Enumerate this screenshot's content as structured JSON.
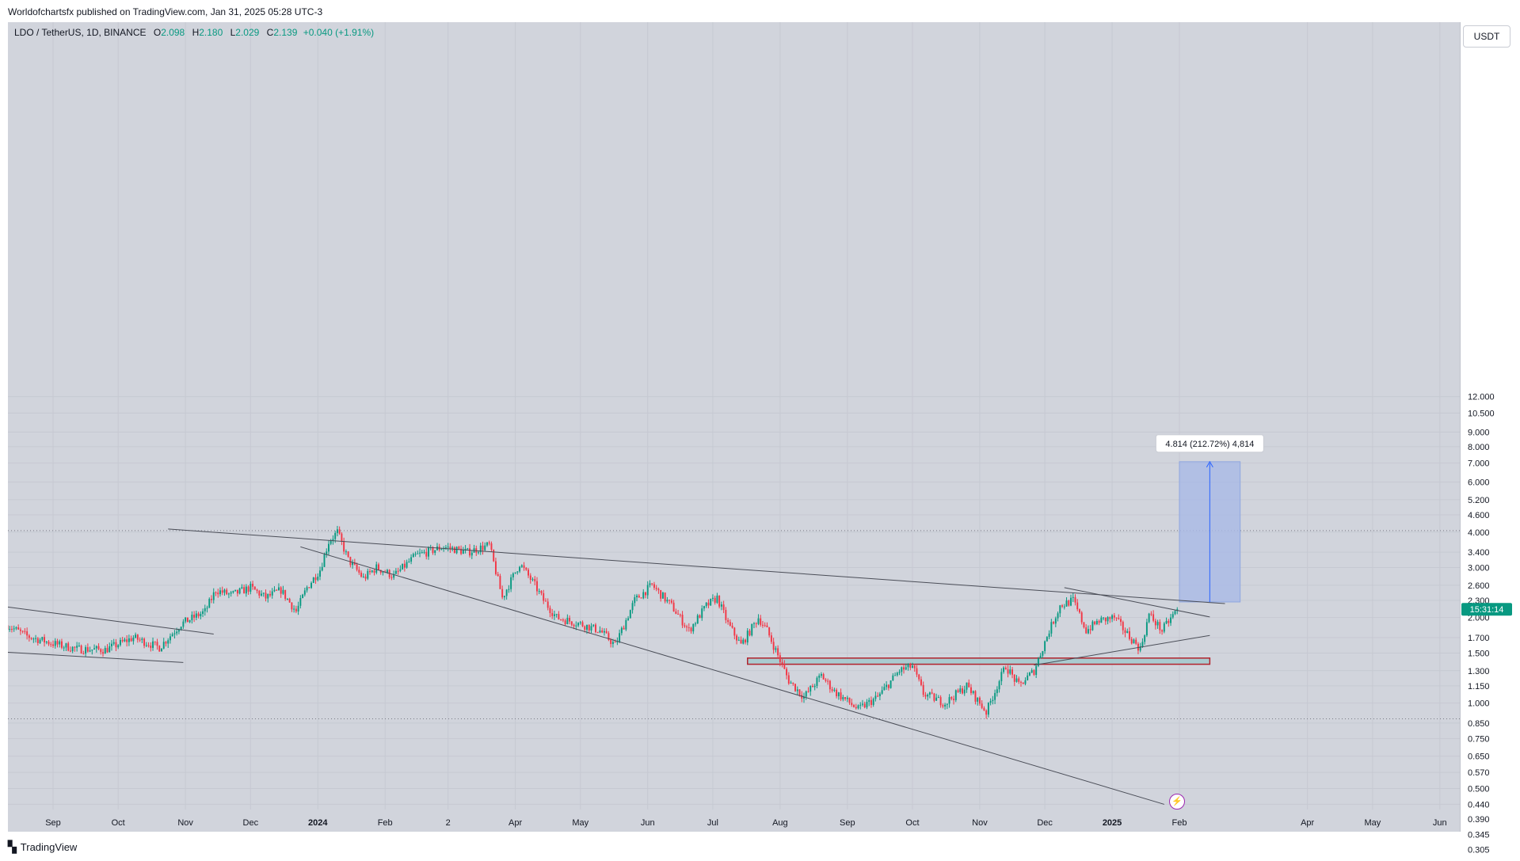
{
  "header": {
    "published_text": "Worldofchartsfx published on TradingView.com, Jan 31, 2025 05:28 UTC-3"
  },
  "legend": {
    "symbol": "LDO / TetherUS, 1D, BINANCE",
    "open_label": "O",
    "open": "2.098",
    "high_label": "H",
    "high": "2.180",
    "low_label": "L",
    "low": "2.029",
    "close_label": "C",
    "close": "2.139",
    "change": "+0.040 (+1.91%)"
  },
  "price_axis": {
    "unit_button": "USDT",
    "countdown": "15:31:14"
  },
  "measure_label": "4.814 (212.72%) 4,814",
  "footer": {
    "brand": "TradingView"
  },
  "icons": {
    "lightning": "lightning-icon",
    "logo": "tradingview-logo-icon"
  },
  "colors": {
    "up": "#089981",
    "down": "#f23645",
    "background": "#d1d4dc",
    "zone_fill": "#9cc8cc",
    "zone_border": "#b2222c",
    "measure_fill": "#a9b9e6",
    "measure_line": "#2962ff"
  },
  "chart_data": {
    "type": "candlestick",
    "title": "LDO / TetherUS, 1D, BINANCE",
    "scale": "log",
    "ylim": [
      0.29,
      13.5
    ],
    "y_ticks": [
      "12.000",
      "10.500",
      "9.000",
      "8.000",
      "7.000",
      "6.000",
      "5.200",
      "4.600",
      "4.000",
      "3.400",
      "3.000",
      "2.600",
      "2.300",
      "2.000",
      "1.700",
      "1.500",
      "1.300",
      "1.150",
      "1.000",
      "0.850",
      "0.750",
      "0.650",
      "0.570",
      "0.500",
      "0.440",
      "0.390",
      "0.345",
      "0.305"
    ],
    "y_tick_values": [
      12,
      10.5,
      9,
      8,
      7,
      6,
      5.2,
      4.6,
      4,
      3.4,
      3,
      2.6,
      2.3,
      2,
      1.7,
      1.5,
      1.3,
      1.15,
      1,
      0.85,
      0.75,
      0.65,
      0.57,
      0.5,
      0.44,
      0.39,
      0.345,
      0.305
    ],
    "x_ticks": [
      {
        "label": "Sep",
        "date": "2023-09-01"
      },
      {
        "label": "Oct",
        "date": "2023-10-01"
      },
      {
        "label": "Nov",
        "date": "2023-11-01"
      },
      {
        "label": "Dec",
        "date": "2023-12-01"
      },
      {
        "label": "2024",
        "date": "2024-01-01",
        "bold": true
      },
      {
        "label": "Feb",
        "date": "2024-02-01"
      },
      {
        "label": "2",
        "date": "2024-03-01"
      },
      {
        "label": "Apr",
        "date": "2024-04-01"
      },
      {
        "label": "May",
        "date": "2024-05-01"
      },
      {
        "label": "Jun",
        "date": "2024-06-01"
      },
      {
        "label": "Jul",
        "date": "2024-07-01"
      },
      {
        "label": "Aug",
        "date": "2024-08-01"
      },
      {
        "label": "Sep",
        "date": "2024-09-01"
      },
      {
        "label": "Oct",
        "date": "2024-10-01"
      },
      {
        "label": "Nov",
        "date": "2024-11-01"
      },
      {
        "label": "Dec",
        "date": "2024-12-01"
      },
      {
        "label": "2025",
        "date": "2025-01-01",
        "bold": true
      },
      {
        "label": "Feb",
        "date": "2025-02-01"
      },
      {
        "label": "Apr",
        "date": "2025-04-01"
      },
      {
        "label": "May",
        "date": "2025-05-01"
      },
      {
        "label": "Jun",
        "date": "2025-06-01"
      }
    ],
    "last_price": 2.139,
    "price_path": [
      [
        "2023-08-11",
        1.88
      ],
      [
        "2023-08-20",
        1.72
      ],
      [
        "2023-09-01",
        1.62
      ],
      [
        "2023-09-12",
        1.55
      ],
      [
        "2023-09-25",
        1.54
      ],
      [
        "2023-10-08",
        1.7
      ],
      [
        "2023-10-20",
        1.57
      ],
      [
        "2023-10-30",
        1.9
      ],
      [
        "2023-11-10",
        2.1
      ],
      [
        "2023-11-15",
        2.5
      ],
      [
        "2023-11-22",
        2.4
      ],
      [
        "2023-12-01",
        2.55
      ],
      [
        "2023-12-08",
        2.35
      ],
      [
        "2023-12-15",
        2.5
      ],
      [
        "2023-12-22",
        2.1
      ],
      [
        "2023-12-27",
        2.55
      ],
      [
        "2024-01-02",
        2.95
      ],
      [
        "2024-01-06",
        3.7
      ],
      [
        "2024-01-10",
        4.0
      ],
      [
        "2024-01-15",
        3.2
      ],
      [
        "2024-01-22",
        2.75
      ],
      [
        "2024-01-28",
        3.0
      ],
      [
        "2024-02-05",
        2.8
      ],
      [
        "2024-02-15",
        3.3
      ],
      [
        "2024-02-28",
        3.55
      ],
      [
        "2024-03-10",
        3.4
      ],
      [
        "2024-03-20",
        3.6
      ],
      [
        "2024-03-26",
        2.35
      ],
      [
        "2024-04-03",
        3.1
      ],
      [
        "2024-04-10",
        2.6
      ],
      [
        "2024-04-14",
        2.3
      ],
      [
        "2024-04-20",
        2.0
      ],
      [
        "2024-05-01",
        1.9
      ],
      [
        "2024-05-10",
        1.8
      ],
      [
        "2024-05-17",
        1.6
      ],
      [
        "2024-05-26",
        2.3
      ],
      [
        "2024-06-03",
        2.6
      ],
      [
        "2024-06-12",
        2.2
      ],
      [
        "2024-06-20",
        1.8
      ],
      [
        "2024-06-28",
        2.2
      ],
      [
        "2024-07-03",
        2.35
      ],
      [
        "2024-07-08",
        1.9
      ],
      [
        "2024-07-14",
        1.6
      ],
      [
        "2024-07-22",
        2.0
      ],
      [
        "2024-07-26",
        1.8
      ],
      [
        "2024-08-05",
        1.2
      ],
      [
        "2024-08-12",
        1.05
      ],
      [
        "2024-08-20",
        1.25
      ],
      [
        "2024-08-26",
        1.1
      ],
      [
        "2024-09-06",
        0.95
      ],
      [
        "2024-09-15",
        1.05
      ],
      [
        "2024-09-25",
        1.3
      ],
      [
        "2024-10-01",
        1.35
      ],
      [
        "2024-10-06",
        1.08
      ],
      [
        "2024-10-16",
        1.0
      ],
      [
        "2024-10-26",
        1.15
      ],
      [
        "2024-11-04",
        0.93
      ],
      [
        "2024-11-10",
        1.2
      ],
      [
        "2024-11-13",
        1.35
      ],
      [
        "2024-11-19",
        1.15
      ],
      [
        "2024-11-26",
        1.3
      ],
      [
        "2024-12-03",
        1.8
      ],
      [
        "2024-12-08",
        2.2
      ],
      [
        "2024-12-14",
        2.3
      ],
      [
        "2024-12-20",
        1.8
      ],
      [
        "2024-12-26",
        1.95
      ],
      [
        "2025-01-02",
        2.0
      ],
      [
        "2025-01-08",
        1.75
      ],
      [
        "2025-01-14",
        1.55
      ],
      [
        "2025-01-18",
        2.05
      ],
      [
        "2025-01-24",
        1.8
      ],
      [
        "2025-01-31",
        2.139
      ]
    ],
    "annotations": {
      "trendlines": [
        {
          "from": [
            "2023-10-24",
            4.1
          ],
          "to": [
            "2025-02-22",
            2.24
          ]
        },
        {
          "from": [
            "2023-12-24",
            3.55
          ],
          "to": [
            "2025-01-25",
            0.44
          ]
        },
        {
          "from": [
            "2023-08-11",
            2.18
          ],
          "to": [
            "2023-11-14",
            1.75
          ]
        },
        {
          "from": [
            "2023-08-11",
            1.51
          ],
          "to": [
            "2023-10-31",
            1.39
          ]
        },
        {
          "from": [
            "2024-12-10",
            2.55
          ],
          "to": [
            "2025-02-15",
            2.01
          ]
        },
        {
          "from": [
            "2024-11-26",
            1.36
          ],
          "to": [
            "2025-02-15",
            1.73
          ]
        }
      ],
      "horizontal_levels": [
        4.05,
        0.88
      ],
      "support_zone": {
        "from": "2024-07-17",
        "to": "2025-02-15",
        "low": 1.37,
        "high": 1.44
      },
      "target_box": {
        "from": "2025-02-01",
        "to": "2025-03-01",
        "low": 2.27,
        "high": 7.08
      }
    }
  }
}
